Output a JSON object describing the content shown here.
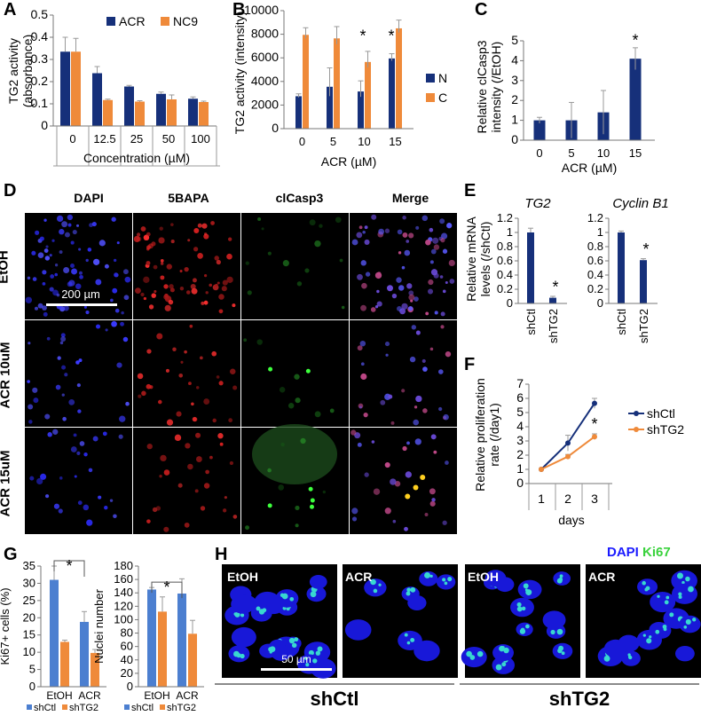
{
  "panels": {
    "A": "A",
    "B": "B",
    "C": "C",
    "D": "D",
    "E": "E",
    "F": "F",
    "G": "G",
    "H": "H"
  },
  "colors": {
    "navy": "#16307a",
    "orange": "#ef8a3a",
    "blue": "#4c7fd0",
    "ki_green": "#39d23c",
    "dapi_blue": "#1a1aff"
  },
  "chart_data": [
    {
      "id": "A",
      "type": "bar",
      "categories": [
        "0",
        "12.5",
        "25",
        "50",
        "100"
      ],
      "series": [
        {
          "name": "ACR",
          "values": [
            0.335,
            0.238,
            0.178,
            0.145,
            0.123
          ],
          "errors": [
            0.065,
            0.03,
            0.005,
            0.008,
            0.008
          ]
        },
        {
          "name": "NC9",
          "values": [
            0.335,
            0.117,
            0.11,
            0.12,
            0.108
          ],
          "errors": [
            0.06,
            0.004,
            0.004,
            0.02,
            0.004
          ]
        }
      ],
      "xlabel": "Concentration (µM)",
      "ylabel": "TG2 activity (absorbance)",
      "ylim": [
        0,
        0.5
      ],
      "yticks": [
        "0",
        "0.1",
        "0.2",
        "0.3",
        "0.4",
        "0.5"
      ],
      "legend": "top-right"
    },
    {
      "id": "B",
      "type": "bar",
      "categories": [
        "0",
        "5",
        "10",
        "15"
      ],
      "series": [
        {
          "name": "N",
          "values": [
            2750,
            3550,
            3150,
            5950
          ],
          "errors": [
            200,
            1600,
            900,
            400
          ]
        },
        {
          "name": "C",
          "values": [
            7950,
            7650,
            5650,
            8500
          ],
          "errors": [
            600,
            1000,
            900,
            700
          ]
        }
      ],
      "xlabel": "ACR (µM)",
      "ylabel": "TG2 activity (intensity)",
      "ylim": [
        0,
        10000
      ],
      "yticks": [
        "0",
        "2000",
        "4000",
        "6000",
        "8000",
        "10000"
      ],
      "legend": "right",
      "annotations": [
        "*",
        "*"
      ]
    },
    {
      "id": "C",
      "type": "bar",
      "categories": [
        "0",
        "5",
        "10",
        "15"
      ],
      "series": [
        {
          "name": "",
          "values": [
            1.0,
            1.0,
            1.4,
            4.1
          ],
          "errors": [
            0.15,
            0.9,
            1.1,
            0.55
          ]
        }
      ],
      "xlabel": "ACR (µM)",
      "ylabel": "Relative clCasp3 intensity (/EtOH)",
      "ylim": [
        0,
        5
      ],
      "yticks": [
        "0",
        "1",
        "2",
        "3",
        "4",
        "5"
      ],
      "annotations": [
        "*"
      ]
    },
    {
      "id": "E1",
      "type": "bar",
      "title": "TG2",
      "categories": [
        "shCtl",
        "shTG2"
      ],
      "series": [
        {
          "name": "",
          "values": [
            1.0,
            0.08
          ],
          "errors": [
            0.06,
            0.02
          ]
        }
      ],
      "ylabel": "Relative mRNA levels (/shCtl)",
      "ylim": [
        0,
        1.2
      ],
      "yticks": [
        "0",
        "0.2",
        "0.4",
        "0.6",
        "0.8",
        "1",
        "1.2"
      ],
      "annotations": [
        "*"
      ]
    },
    {
      "id": "E2",
      "type": "bar",
      "title": "Cyclin B1",
      "categories": [
        "shCtl",
        "shTG2"
      ],
      "series": [
        {
          "name": "",
          "values": [
            1.0,
            0.61
          ],
          "errors": [
            0.02,
            0.02
          ]
        }
      ],
      "ylim": [
        0,
        1.2
      ],
      "yticks": [
        "0",
        "0.2",
        "0.4",
        "0.6",
        "0.8",
        "1",
        "1.2"
      ],
      "annotations": [
        "*"
      ]
    },
    {
      "id": "F",
      "type": "line",
      "x": [
        "1",
        "2",
        "3"
      ],
      "series": [
        {
          "name": "shCtl",
          "values": [
            1.0,
            2.85,
            5.65
          ],
          "errors": [
            0.05,
            0.55,
            0.35
          ]
        },
        {
          "name": "shTG2",
          "values": [
            1.0,
            1.9,
            3.3
          ],
          "errors": [
            0.05,
            0.15,
            0.2
          ]
        }
      ],
      "xlabel": "days",
      "ylabel": "Relative proliferation rate (/day1)",
      "ylim": [
        0,
        7
      ],
      "yticks": [
        "0",
        "1",
        "2",
        "3",
        "4",
        "5",
        "6",
        "7"
      ],
      "legend": "right",
      "annotations": [
        "*"
      ]
    },
    {
      "id": "G1",
      "type": "bar",
      "categories": [
        "EtOH",
        "ACR"
      ],
      "series": [
        {
          "name": "shCtl",
          "values": [
            31,
            18.8
          ],
          "errors": [
            4,
            3
          ]
        },
        {
          "name": "shTG2",
          "values": [
            13,
            9.8
          ],
          "errors": [
            0.5,
            1
          ]
        }
      ],
      "ylabel": "Ki67+ cells (%)",
      "ylim": [
        0,
        35
      ],
      "yticks": [
        "0",
        "5",
        "10",
        "15",
        "20",
        "25",
        "30",
        "35"
      ],
      "legend": "bottom",
      "annotations": [
        "*"
      ]
    },
    {
      "id": "G2",
      "type": "bar",
      "categories": [
        "EtOH",
        "ACR"
      ],
      "series": [
        {
          "name": "shCtl",
          "values": [
            145,
            139
          ],
          "errors": [
            3,
            22
          ]
        },
        {
          "name": "shTG2",
          "values": [
            112,
            79
          ],
          "errors": [
            22,
            20
          ]
        }
      ],
      "ylabel": "Nuclei number",
      "ylim": [
        0,
        180
      ],
      "yticks": [
        "0",
        "20",
        "40",
        "60",
        "80",
        "100",
        "120",
        "140",
        "160",
        "180"
      ],
      "legend": "bottom",
      "annotations": [
        "*"
      ]
    }
  ],
  "micro_d": {
    "cols": [
      "DAPI",
      "5BAPA",
      "clCasp3",
      "Merge"
    ],
    "rows": [
      "EtOH",
      "ACR 10uM",
      "ACR 15uM"
    ],
    "scale": "200 µm"
  },
  "micro_h": {
    "legend_dapi": "DAPI",
    "legend_ki67": "Ki67",
    "tiles": [
      "EtOH",
      "ACR",
      "EtOH",
      "ACR"
    ],
    "scale": "50 µm",
    "groups": [
      "shCtl",
      "shTG2"
    ]
  }
}
